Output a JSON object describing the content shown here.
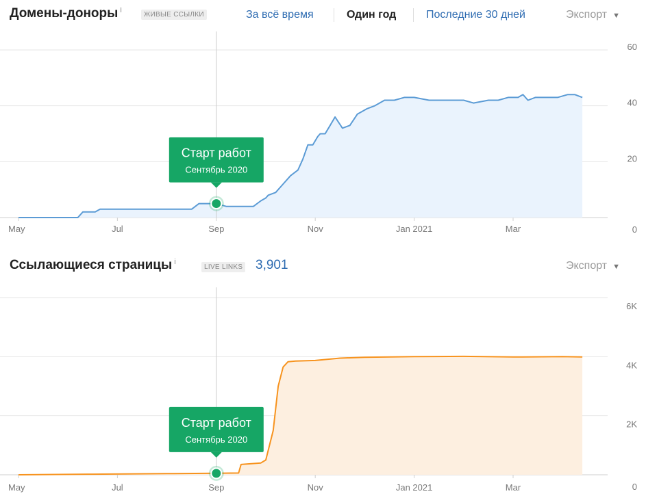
{
  "panel1": {
    "title": "Домены-доноры",
    "info": "i",
    "badge": "ЖИВЫЕ ССЫЛКИ",
    "ranges": [
      "За всё время",
      "Один год",
      "Последние 30 дней"
    ],
    "active_range": "Один год",
    "export_label": "Экспорт",
    "marker": {
      "title": "Старт работ",
      "subtitle": "Сентябрь 2020"
    }
  },
  "panel2": {
    "title": "Ссылающиеся страницы",
    "info": "i",
    "badge": "LIVE LINKS",
    "count": "3,901",
    "export_label": "Экспорт",
    "marker": {
      "title": "Старт работ",
      "subtitle": "Сентябрь 2020"
    }
  },
  "chart_data": [
    {
      "type": "area",
      "title": "Домены-доноры",
      "x_labels": [
        "May",
        "Jul",
        "Sep",
        "Nov",
        "Jan 2021",
        "Mar"
      ],
      "y_ticks": [
        "60",
        "40",
        "20",
        "0"
      ],
      "ylim": [
        0,
        60
      ],
      "grid": true,
      "color": "#5b9bd5",
      "fill": "#eaf3fd",
      "series": [
        {
          "x_months": [
            0,
            1.2,
            1.3,
            1.55,
            1.65,
            2.0,
            3.0,
            3.5,
            3.65,
            4.0,
            4.2,
            4.35,
            4.55,
            4.75,
            4.9,
            5.0,
            5.05,
            5.2,
            5.35,
            5.5,
            5.65,
            5.75,
            5.85,
            5.95,
            6.05,
            6.1,
            6.2,
            6.3,
            6.4,
            6.55,
            6.7,
            6.85,
            7.05,
            7.2,
            7.4,
            7.6,
            7.8,
            8.0,
            8.3,
            8.6,
            9.0,
            9.2,
            9.5,
            9.7,
            9.9,
            10.1,
            10.2,
            10.3,
            10.45,
            10.6,
            10.9,
            11.1,
            11.25,
            11.4
          ],
          "values": [
            0,
            0,
            2,
            2,
            3,
            3,
            3,
            3,
            5,
            5,
            4,
            4,
            4,
            4,
            6,
            7,
            8,
            9,
            12,
            15,
            17,
            21,
            26,
            26,
            29,
            30,
            30,
            33,
            36,
            32,
            33,
            37,
            39,
            40,
            42,
            42,
            43,
            43,
            42,
            42,
            42,
            41,
            42,
            42,
            43,
            43,
            44,
            42,
            43,
            43,
            43,
            44,
            44,
            43
          ]
        }
      ],
      "marker": {
        "x_month": 4.0,
        "value": 5
      }
    },
    {
      "type": "area",
      "title": "Ссылающиеся страницы",
      "x_labels": [
        "May",
        "Jul",
        "Sep",
        "Nov",
        "Jan 2021",
        "Mar"
      ],
      "y_ticks": [
        "6K",
        "4K",
        "2K",
        "0"
      ],
      "ylim": [
        0,
        6000
      ],
      "grid": true,
      "color": "#f7931e",
      "fill": "#fdefe0",
      "series": [
        {
          "x_months": [
            0,
            1.5,
            3.0,
            4.0,
            4.45,
            4.5,
            4.9,
            5.0,
            5.15,
            5.25,
            5.35,
            5.45,
            5.6,
            6.0,
            6.5,
            7.0,
            8.0,
            9.0,
            10.0,
            11.0,
            11.4
          ],
          "values": [
            0,
            20,
            40,
            50,
            60,
            350,
            400,
            500,
            1500,
            3000,
            3650,
            3830,
            3850,
            3870,
            3950,
            3980,
            4000,
            4010,
            3990,
            4000,
            3990
          ]
        }
      ],
      "marker": {
        "x_month": 4.0,
        "value": 50
      }
    }
  ]
}
